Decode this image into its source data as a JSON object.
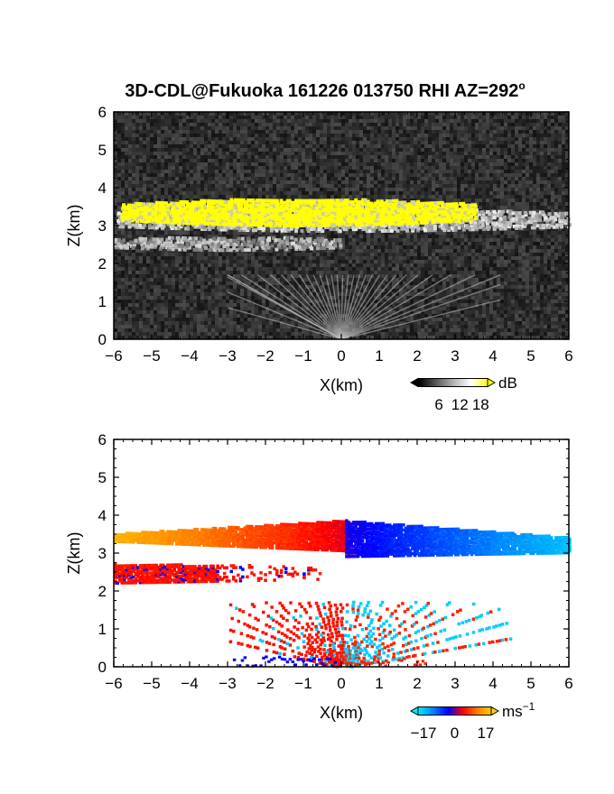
{
  "title": "3D-CDL@Fukuoka 161226 013750 RHI AZ=292",
  "title_superscript": "o",
  "chart_data": [
    {
      "type": "heatmap",
      "panel": "top",
      "quantity": "backscatter intensity",
      "xlabel": "X(km)",
      "ylabel": "Z(km)",
      "xlim": [
        -6,
        6
      ],
      "ylim": [
        0,
        6
      ],
      "xticks": [
        "−6",
        "−5",
        "−4",
        "−3",
        "−2",
        "−1",
        "0",
        "1",
        "2",
        "3",
        "4",
        "5",
        "6"
      ],
      "yticks": [
        "0",
        "1",
        "2",
        "3",
        "4",
        "5",
        "6"
      ],
      "colorbar": {
        "unit": "dB",
        "ticks": [
          "6",
          "12",
          "18"
        ],
        "range": [
          0,
          20
        ]
      },
      "features": [
        {
          "name": "saturated cloud layer",
          "x": [
            -5.8,
            3.5
          ],
          "z": [
            3.05,
            3.75
          ],
          "value_db": 20
        },
        {
          "name": "upper cloud base",
          "x": [
            -5.9,
            6.0
          ],
          "z": [
            2.9,
            3.5
          ],
          "value_db": 14
        },
        {
          "name": "lower layer",
          "x": [
            -6.0,
            0.0
          ],
          "z": [
            2.4,
            2.75
          ],
          "value_db": 10
        },
        {
          "name": "boundary layer rays",
          "x": [
            -3.0,
            4.2
          ],
          "z": [
            0.0,
            1.7
          ],
          "value_db": 9
        }
      ],
      "grid": false
    },
    {
      "type": "heatmap",
      "panel": "bottom",
      "quantity": "radial velocity",
      "xlabel": "X(km)",
      "ylabel": "Z(km)",
      "xlim": [
        -6,
        6
      ],
      "ylim": [
        0,
        6
      ],
      "xticks": [
        "−6",
        "−5",
        "−4",
        "−3",
        "−2",
        "−1",
        "0",
        "1",
        "2",
        "3",
        "4",
        "5",
        "6"
      ],
      "yticks": [
        "0",
        "1",
        "2",
        "3",
        "4",
        "5",
        "6"
      ],
      "colorbar": {
        "unit": "ms",
        "unit_exponent": "−1",
        "ticks": [
          "−17",
          "0",
          "17"
        ],
        "range": [
          -20,
          20
        ]
      },
      "features": [
        {
          "name": "upper layer (negative x side)",
          "x": [
            -6.0,
            0.1
          ],
          "z": [
            3.1,
            3.9
          ],
          "velocity": [
            17,
            3
          ]
        },
        {
          "name": "upper layer (positive x side)",
          "x": [
            0.1,
            6.0
          ],
          "z": [
            2.95,
            3.9
          ],
          "velocity": [
            -3,
            -17
          ]
        },
        {
          "name": "lower layer",
          "x": [
            -6.0,
            -0.6
          ],
          "z": [
            2.25,
            2.75
          ],
          "velocity": [
            4,
            4
          ]
        },
        {
          "name": "boundary layer rays",
          "x": [
            -3.0,
            4.5
          ],
          "z": [
            0.0,
            1.75
          ],
          "velocity": [
            4,
            -4
          ]
        }
      ],
      "grid": false
    }
  ],
  "colors": {
    "intensity_scale": [
      "#000000",
      "#5a5a5a",
      "#b4b4b4",
      "#ffffff",
      "#ffff00"
    ],
    "velocity_scale": [
      "#00e6ff",
      "#0080ff",
      "#0000ff",
      "#ff0000",
      "#ff8000",
      "#ffd000"
    ]
  }
}
